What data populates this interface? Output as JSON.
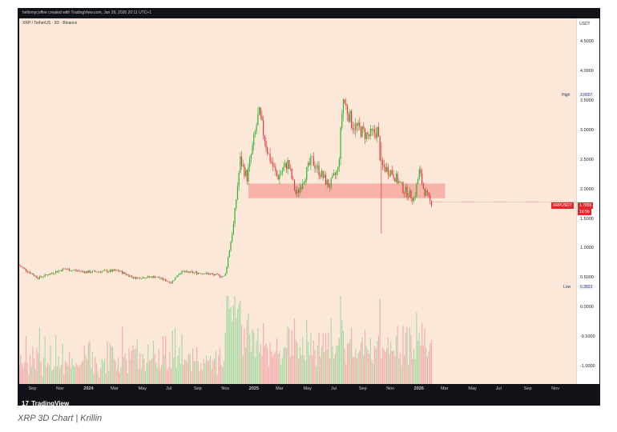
{
  "header": {
    "creator_line": "hellomycoffee created with TradingView.com, Jan 29, 2026 20:11 UTC+1"
  },
  "chart_header": {
    "symbol_line": "XRP / TetherUS · 3D · Binance"
  },
  "axis": {
    "currency": "USDT",
    "y_ticks": [
      "4.5000",
      "4.0000",
      "3.5000",
      "3.0000",
      "2.5000",
      "2.0000",
      "1.5000",
      "1.0000",
      "0.5000",
      "0.0000",
      "-0.5000",
      "-1.0000"
    ],
    "x_ticks": [
      "Sep",
      "Nov",
      "2024",
      "Mar",
      "May",
      "Jul",
      "Sep",
      "Nov",
      "2025",
      "Mar",
      "May",
      "Jul",
      "Sep",
      "Nov",
      "2026",
      "Mar",
      "May",
      "Jul",
      "Sep",
      "Nov"
    ]
  },
  "labels": {
    "high_label": "High",
    "high_value": "3.6607",
    "low_label": "Low",
    "low_value": "0.3823",
    "price_symbol": "XRPUSDT",
    "price_value": "1.7855",
    "countdown": "1d 5h"
  },
  "footer": {
    "brand": "TradingView",
    "brand_icon": "tradingview-logo-icon"
  },
  "caption": "XRP 3D Chart | Krillin",
  "colors": {
    "up": "#2db32d",
    "down": "#d93b3b",
    "zone": "#f7a8a0",
    "bg": "#fbe8d9",
    "tag": "#e0282b"
  },
  "chart_data": {
    "type": "candlestick",
    "ylim": [
      -1.3,
      4.9
    ],
    "xlim": [
      "2023-08-01",
      "2026-12-15"
    ],
    "high": 3.6607,
    "low": 0.3823,
    "last_price": 1.7855,
    "support_zone": {
      "from": "2024-12-20",
      "to": "2026-02-28",
      "low": 1.85,
      "high": 2.1
    },
    "price_path": [
      {
        "date": "2023-08-01",
        "price": 0.72
      },
      {
        "date": "2023-09-15",
        "price": 0.5
      },
      {
        "date": "2023-11-10",
        "price": 0.65
      },
      {
        "date": "2024-01-01",
        "price": 0.6
      },
      {
        "date": "2024-03-10",
        "price": 0.62
      },
      {
        "date": "2024-04-15",
        "price": 0.5
      },
      {
        "date": "2024-06-01",
        "price": 0.52
      },
      {
        "date": "2024-07-05",
        "price": 0.42
      },
      {
        "date": "2024-07-25",
        "price": 0.6
      },
      {
        "date": "2024-09-15",
        "price": 0.58
      },
      {
        "date": "2024-11-01",
        "price": 0.52
      },
      {
        "date": "2024-11-20",
        "price": 1.4
      },
      {
        "date": "2024-12-05",
        "price": 2.5
      },
      {
        "date": "2024-12-20",
        "price": 2.2
      },
      {
        "date": "2025-01-15",
        "price": 3.3
      },
      {
        "date": "2025-02-05",
        "price": 2.6
      },
      {
        "date": "2025-02-25",
        "price": 2.2
      },
      {
        "date": "2025-03-20",
        "price": 2.45
      },
      {
        "date": "2025-04-08",
        "price": 1.9
      },
      {
        "date": "2025-05-12",
        "price": 2.5
      },
      {
        "date": "2025-06-20",
        "price": 2.05
      },
      {
        "date": "2025-07-10",
        "price": 2.35
      },
      {
        "date": "2025-07-20",
        "price": 3.55
      },
      {
        "date": "2025-08-10",
        "price": 3.1
      },
      {
        "date": "2025-09-15",
        "price": 2.9
      },
      {
        "date": "2025-10-05",
        "price": 3.0
      },
      {
        "date": "2025-10-12",
        "price": 2.4
      },
      {
        "date": "2025-11-05",
        "price": 2.3
      },
      {
        "date": "2025-12-01",
        "price": 2.0
      },
      {
        "date": "2025-12-25",
        "price": 1.85
      },
      {
        "date": "2026-01-05",
        "price": 2.3
      },
      {
        "date": "2026-01-15",
        "price": 2.0
      },
      {
        "date": "2026-01-29",
        "price": 1.7855
      }
    ],
    "wicks": [
      {
        "date": "2025-10-10",
        "low": 1.25,
        "high": 2.8
      }
    ]
  }
}
